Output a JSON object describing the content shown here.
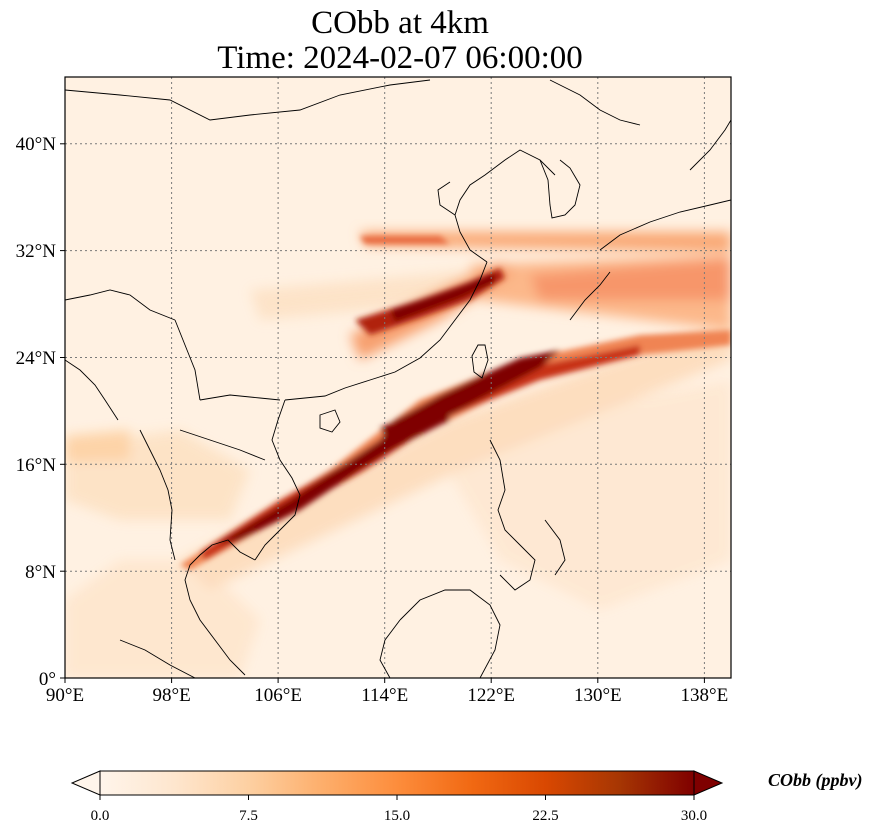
{
  "title_line1": "CObb at 4km",
  "title_line2": "Time: 2024-02-07 06:00:00",
  "map": {
    "lon_range": [
      90,
      140
    ],
    "lat_range": [
      0,
      45
    ],
    "lon_ticks": [
      "90°E",
      "98°E",
      "106°E",
      "114°E",
      "122°E",
      "130°E",
      "138°E"
    ],
    "lat_ticks": [
      "0°",
      "8°N",
      "16°N",
      "24°N",
      "32°N",
      "40°N"
    ],
    "gridlines": true,
    "coastlines": true,
    "borders": true
  },
  "colorbar": {
    "label": "CObb (ppbv)",
    "ticks": [
      "0.0",
      "7.5",
      "15.0",
      "22.5",
      "30.0"
    ],
    "min": 0,
    "max": 30,
    "extend": "both",
    "colormap": [
      "#fff5eb",
      "#fee6ce",
      "#fdd0a2",
      "#fdae6b",
      "#fd8d3c",
      "#f16913",
      "#d94801",
      "#a63603",
      "#7f0000"
    ]
  }
}
